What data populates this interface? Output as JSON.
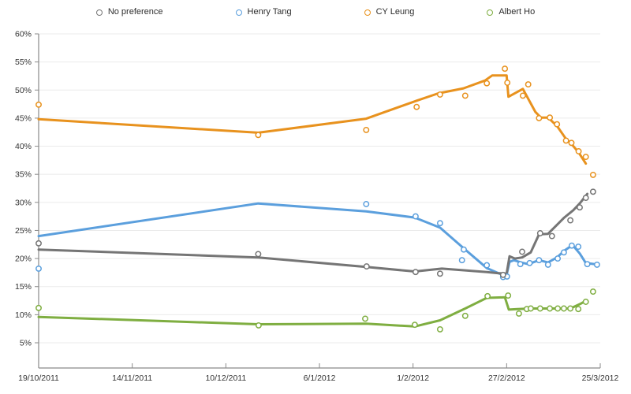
{
  "chart_data": {
    "type": "line",
    "title": "",
    "xlabel": "",
    "ylabel": "",
    "grid": true,
    "legend_position": "top",
    "x_axis": {
      "tick_labels": [
        "19/10/2011",
        "14/11/2011",
        "10/12/2011",
        "6/1/2012",
        "1/2/2012",
        "27/2/2012",
        "25/3/2012"
      ],
      "tick_days": [
        0,
        26,
        52,
        78,
        104,
        130,
        156
      ],
      "range_days": [
        0,
        156
      ]
    },
    "y_axis": {
      "unit": "%",
      "min": 5,
      "max": 60,
      "step": 5,
      "tick_labels": [
        "5%",
        "10%",
        "15%",
        "20%",
        "25%",
        "30%",
        "35%",
        "40%",
        "45%",
        "50%",
        "55%",
        "60%"
      ]
    },
    "series": [
      {
        "name": "CY Leung",
        "slug": "cy-leung",
        "color": "#e8921e",
        "trend_line": [
          [
            0,
            44.8
          ],
          [
            61,
            42.4
          ],
          [
            91,
            44.9
          ],
          [
            105,
            48.1
          ],
          [
            111,
            49.4
          ],
          [
            118,
            50.3
          ],
          [
            124,
            51.7
          ],
          [
            126,
            52.6
          ],
          [
            130,
            52.6
          ],
          [
            130.5,
            48.8
          ],
          [
            134.5,
            50.2
          ],
          [
            138,
            46.1
          ],
          [
            139.5,
            45.1
          ],
          [
            141.5,
            45.1
          ],
          [
            144,
            43.6
          ],
          [
            146.5,
            41.3
          ],
          [
            148,
            40.4
          ],
          [
            150,
            38.9
          ],
          [
            152,
            36.9
          ]
        ],
        "points": [
          [
            0,
            47.4
          ],
          [
            61,
            42.0
          ],
          [
            91,
            42.9
          ],
          [
            105,
            47.0
          ],
          [
            111.5,
            49.2
          ],
          [
            118.5,
            49.0
          ],
          [
            124.5,
            51.2
          ],
          [
            129.5,
            53.8
          ],
          [
            130.2,
            51.3
          ],
          [
            134.5,
            49.0
          ],
          [
            136,
            51.0
          ],
          [
            139,
            45.0
          ],
          [
            142,
            45.1
          ],
          [
            144,
            43.9
          ],
          [
            146.5,
            41.0
          ],
          [
            148,
            40.6
          ],
          [
            150,
            39.1
          ],
          [
            152,
            38.1
          ],
          [
            154,
            34.9
          ]
        ]
      },
      {
        "name": "Albert Ho",
        "slug": "albert-ho",
        "color": "#7fae41",
        "trend_line": [
          [
            0,
            9.6
          ],
          [
            61,
            8.3
          ],
          [
            91,
            8.4
          ],
          [
            104.5,
            7.9
          ],
          [
            111.5,
            9.0
          ],
          [
            118.5,
            11.1
          ],
          [
            124.5,
            13.0
          ],
          [
            129.5,
            13.1
          ],
          [
            130.6,
            10.9
          ],
          [
            133,
            11.0
          ],
          [
            136.7,
            11.1
          ],
          [
            147.7,
            11.1
          ],
          [
            150.7,
            12.0
          ],
          [
            151.8,
            12.4
          ]
        ],
        "points": [
          [
            0,
            11.2
          ],
          [
            61.1,
            8.1
          ],
          [
            90.7,
            9.3
          ],
          [
            104.5,
            8.2
          ],
          [
            111.5,
            7.4
          ],
          [
            118.5,
            9.8
          ],
          [
            124.7,
            13.3
          ],
          [
            130.4,
            13.4
          ],
          [
            133.4,
            10.2
          ],
          [
            135.6,
            11.0
          ],
          [
            136.7,
            11.1
          ],
          [
            139.3,
            11.1
          ],
          [
            142,
            11.1
          ],
          [
            144.2,
            11.1
          ],
          [
            145.9,
            11.1
          ],
          [
            147.7,
            11.1
          ],
          [
            149.9,
            11.0
          ],
          [
            152,
            12.3
          ],
          [
            154,
            14.1
          ]
        ]
      },
      {
        "name": "Henry Tang",
        "slug": "henry-tang",
        "color": "#5b9fdd",
        "trend_line": [
          [
            0,
            24.0
          ],
          [
            61,
            29.8
          ],
          [
            91,
            28.4
          ],
          [
            104.5,
            27.3
          ],
          [
            111.5,
            25.5
          ],
          [
            118.5,
            21.6
          ],
          [
            124.5,
            18.3
          ],
          [
            128,
            17.3
          ],
          [
            130,
            17.1
          ],
          [
            130.8,
            19.4
          ],
          [
            132,
            19.7
          ],
          [
            134,
            19.3
          ],
          [
            136,
            19.0
          ],
          [
            139,
            19.7
          ],
          [
            141.5,
            19.3
          ],
          [
            144,
            20.2
          ],
          [
            146,
            21.4
          ],
          [
            148.3,
            22.4
          ],
          [
            150.3,
            20.9
          ],
          [
            152,
            19.2
          ],
          [
            154.5,
            19.0
          ]
        ],
        "points": [
          [
            0,
            18.2
          ],
          [
            91,
            29.7
          ],
          [
            104.7,
            27.5
          ],
          [
            111.5,
            26.3
          ],
          [
            117.6,
            19.7
          ],
          [
            118.1,
            21.6
          ],
          [
            124.5,
            18.8
          ],
          [
            129,
            16.7
          ],
          [
            130.1,
            16.8
          ],
          [
            133.8,
            19.0
          ],
          [
            136.4,
            19.2
          ],
          [
            139,
            19.7
          ],
          [
            141.5,
            18.9
          ],
          [
            144.2,
            20.0
          ],
          [
            145.9,
            21.1
          ],
          [
            148.1,
            22.3
          ],
          [
            149.9,
            22.1
          ],
          [
            152.4,
            19.0
          ],
          [
            155.1,
            18.9
          ]
        ]
      },
      {
        "name": "No preference",
        "slug": "no-preference",
        "color": "#757575",
        "trend_line": [
          [
            0,
            21.6
          ],
          [
            61,
            20.2
          ],
          [
            91,
            18.5
          ],
          [
            104.5,
            17.7
          ],
          [
            112,
            18.2
          ],
          [
            118.5,
            17.9
          ],
          [
            124.5,
            17.6
          ],
          [
            127.5,
            17.4
          ],
          [
            130,
            17.3
          ],
          [
            130.8,
            20.4
          ],
          [
            132.3,
            20.0
          ],
          [
            134.3,
            20.2
          ],
          [
            136.7,
            21.1
          ],
          [
            139,
            24.3
          ],
          [
            141.5,
            24.4
          ],
          [
            144,
            26.0
          ],
          [
            146,
            27.3
          ],
          [
            148.5,
            28.6
          ],
          [
            150.3,
            29.8
          ],
          [
            152.4,
            31.5
          ]
        ],
        "points": [
          [
            0,
            22.7
          ],
          [
            61,
            20.8
          ],
          [
            91.1,
            18.6
          ],
          [
            104.7,
            17.6
          ],
          [
            111.5,
            17.3
          ],
          [
            129,
            17.1
          ],
          [
            134.3,
            21.2
          ],
          [
            139.3,
            24.5
          ],
          [
            142.6,
            24.0
          ],
          [
            147.7,
            26.8
          ],
          [
            150.3,
            29.1
          ],
          [
            152,
            30.8
          ],
          [
            154,
            31.9
          ]
        ]
      }
    ]
  },
  "legend": {
    "items": [
      {
        "label": "No preference",
        "color": "#757575",
        "slug": "no-preference"
      },
      {
        "label": "Henry Tang",
        "color": "#5b9fdd",
        "slug": "henry-tang"
      },
      {
        "label": "CY Leung",
        "color": "#e8921e",
        "slug": "cy-leung"
      },
      {
        "label": "Albert Ho",
        "color": "#7fae41",
        "slug": "albert-ho"
      }
    ]
  },
  "style": {
    "gridline_color": "#ebebeb",
    "axis_color": "#8a8a8a",
    "tick_label_color": "#333333",
    "background": "#ffffff"
  }
}
